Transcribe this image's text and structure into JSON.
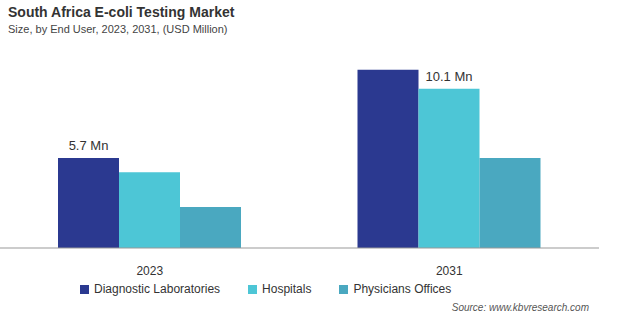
{
  "chart_data": {
    "type": "bar",
    "title": "South Africa E-coli Testing Market",
    "subtitle": "Size, by End User, 2023, 2031, (USD Million)",
    "categories": [
      "2023",
      "2031"
    ],
    "series": [
      {
        "name": "Diagnostic Laboratories",
        "color": "#2b3990",
        "values": [
          5.7,
          11.3
        ],
        "value_labels": [
          "5.7 Mn",
          null
        ]
      },
      {
        "name": "Hospitals",
        "color": "#4dc6d6",
        "values": [
          4.8,
          10.1
        ],
        "value_labels": [
          null,
          "10.1 Mn"
        ]
      },
      {
        "name": "Physicians Offices",
        "color": "#4aa8c0",
        "values": [
          2.6,
          5.7
        ]
      }
    ],
    "ylim": [
      0,
      13
    ],
    "tick_labels": "x",
    "data_labels": true,
    "legend": "bottom",
    "grid": false,
    "source": "Source: www.kbvresearch.com"
  }
}
